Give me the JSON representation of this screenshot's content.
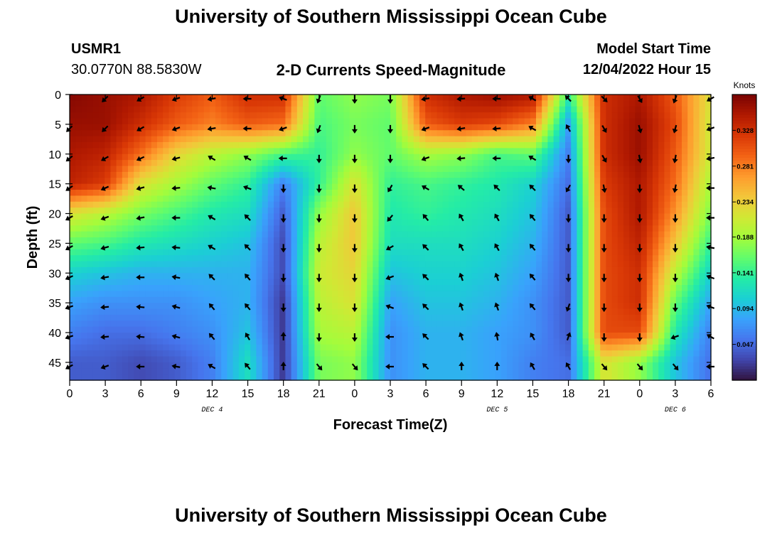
{
  "header": {
    "title": "University of Southern Mississippi Ocean Cube",
    "station_id": "USMR1",
    "station_coords": "30.0770N  88.5830W",
    "plot_title": "2-D Currents Speed-Magnitude",
    "model_start_label": "Model Start Time",
    "model_start_value": "12/04/2022 Hour 15"
  },
  "footer": {
    "title": "University of Southern Mississippi Ocean Cube"
  },
  "colors": {
    "colormap": [
      "#30123b",
      "#4145ab",
      "#4675ed",
      "#39a2fc",
      "#1bcfd4",
      "#24eca6",
      "#61fc6c",
      "#a4fc3b",
      "#d1e834",
      "#f3c63a",
      "#fe9b2d",
      "#f36315",
      "#d93806",
      "#b11901",
      "#7a0402"
    ],
    "arrow": "#000000"
  },
  "chart_data": {
    "type": "heatmap",
    "title": "2-D Currents Speed-Magnitude",
    "xlabel": "Forecast Time(Z)",
    "ylabel": "Depth (ft)",
    "x_hours": [
      0,
      48
    ],
    "ylim": [
      0,
      48
    ],
    "x_ticks": [
      {
        "h": 0,
        "label": "0"
      },
      {
        "h": 3,
        "label": "3"
      },
      {
        "h": 6,
        "label": "6"
      },
      {
        "h": 9,
        "label": "9"
      },
      {
        "h": 12,
        "label": "12"
      },
      {
        "h": 15,
        "label": "15"
      },
      {
        "h": 18,
        "label": "18"
      },
      {
        "h": 21,
        "label": "21"
      },
      {
        "h": 24,
        "label": "0"
      },
      {
        "h": 27,
        "label": "3"
      },
      {
        "h": 30,
        "label": "6"
      },
      {
        "h": 33,
        "label": "9"
      },
      {
        "h": 36,
        "label": "12"
      },
      {
        "h": 39,
        "label": "15"
      },
      {
        "h": 42,
        "label": "18"
      },
      {
        "h": 45,
        "label": "21"
      },
      {
        "h": 48,
        "label": "0"
      },
      {
        "h": 51,
        "label": "3"
      },
      {
        "h": 54,
        "label": "6"
      }
    ],
    "x_max": 54,
    "y_ticks": [
      0,
      5,
      10,
      15,
      20,
      25,
      30,
      35,
      40,
      45
    ],
    "date_labels": [
      {
        "h": 12,
        "label": "DEC 4"
      },
      {
        "h": 36,
        "label": "DEC 5"
      },
      {
        "h": 51,
        "label": "DEC 6"
      }
    ],
    "colorbar": {
      "label": "Knots",
      "min": 0,
      "max": 0.375,
      "ticks": [
        0.047,
        0.094,
        0.141,
        0.188,
        0.234,
        0.281,
        0.328
      ]
    },
    "depths": [
      0,
      5,
      10,
      15,
      20,
      25,
      30,
      35,
      40,
      45
    ],
    "times": [
      0,
      3,
      6,
      9,
      12,
      15,
      18,
      21,
      24,
      27,
      30,
      33,
      36,
      39,
      42,
      45,
      48,
      51,
      54
    ],
    "speed": [
      [
        0.37,
        0.36,
        0.35,
        0.32,
        0.3,
        0.33,
        0.33,
        0.16,
        0.18,
        0.17,
        0.33,
        0.35,
        0.36,
        0.35,
        0.14,
        0.33,
        0.35,
        0.3,
        0.22
      ],
      [
        0.36,
        0.36,
        0.33,
        0.3,
        0.28,
        0.3,
        0.29,
        0.15,
        0.17,
        0.16,
        0.3,
        0.32,
        0.31,
        0.28,
        0.08,
        0.33,
        0.36,
        0.31,
        0.21
      ],
      [
        0.35,
        0.34,
        0.29,
        0.23,
        0.2,
        0.18,
        0.15,
        0.14,
        0.18,
        0.16,
        0.19,
        0.18,
        0.15,
        0.16,
        0.06,
        0.33,
        0.36,
        0.3,
        0.21
      ],
      [
        0.34,
        0.32,
        0.22,
        0.19,
        0.16,
        0.14,
        0.06,
        0.14,
        0.22,
        0.14,
        0.15,
        0.14,
        0.13,
        0.11,
        0.05,
        0.32,
        0.35,
        0.29,
        0.19
      ],
      [
        0.22,
        0.2,
        0.17,
        0.15,
        0.13,
        0.12,
        0.04,
        0.18,
        0.24,
        0.13,
        0.14,
        0.13,
        0.12,
        0.1,
        0.04,
        0.31,
        0.35,
        0.27,
        0.17
      ],
      [
        0.16,
        0.15,
        0.13,
        0.12,
        0.11,
        0.1,
        0.03,
        0.2,
        0.24,
        0.12,
        0.12,
        0.12,
        0.11,
        0.09,
        0.04,
        0.31,
        0.34,
        0.24,
        0.14
      ],
      [
        0.11,
        0.1,
        0.09,
        0.09,
        0.09,
        0.09,
        0.03,
        0.21,
        0.23,
        0.1,
        0.11,
        0.11,
        0.1,
        0.08,
        0.04,
        0.31,
        0.33,
        0.2,
        0.11
      ],
      [
        0.08,
        0.07,
        0.07,
        0.07,
        0.08,
        0.09,
        0.02,
        0.2,
        0.22,
        0.08,
        0.1,
        0.1,
        0.09,
        0.07,
        0.04,
        0.31,
        0.33,
        0.16,
        0.08
      ],
      [
        0.06,
        0.05,
        0.05,
        0.06,
        0.07,
        0.1,
        0.02,
        0.19,
        0.2,
        0.07,
        0.09,
        0.09,
        0.08,
        0.07,
        0.04,
        0.31,
        0.31,
        0.13,
        0.06
      ],
      [
        0.04,
        0.04,
        0.03,
        0.04,
        0.06,
        0.12,
        0.02,
        0.17,
        0.18,
        0.07,
        0.09,
        0.09,
        0.08,
        0.06,
        0.05,
        0.22,
        0.18,
        0.1,
        0.05
      ]
    ],
    "arrow_dir_deg": [
      [
        null,
        225,
        240,
        250,
        260,
        270,
        290,
        200,
        180,
        180,
        260,
        265,
        270,
        300,
        315,
        135,
        150,
        200,
        240
      ],
      [
        225,
        225,
        240,
        250,
        260,
        270,
        250,
        200,
        180,
        180,
        250,
        260,
        265,
        300,
        330,
        150,
        165,
        195,
        250
      ],
      [
        230,
        240,
        245,
        255,
        300,
        300,
        270,
        180,
        180,
        180,
        250,
        265,
        270,
        300,
        180,
        150,
        170,
        190,
        260
      ],
      [
        235,
        245,
        255,
        265,
        280,
        290,
        180,
        180,
        180,
        210,
        300,
        310,
        315,
        315,
        210,
        170,
        180,
        190,
        270
      ],
      [
        240,
        250,
        260,
        270,
        300,
        315,
        180,
        180,
        180,
        220,
        320,
        330,
        330,
        320,
        180,
        180,
        180,
        180,
        270
      ],
      [
        240,
        255,
        265,
        275,
        300,
        315,
        180,
        180,
        180,
        240,
        315,
        330,
        330,
        320,
        180,
        180,
        180,
        180,
        280
      ],
      [
        245,
        260,
        270,
        280,
        315,
        320,
        180,
        180,
        180,
        250,
        315,
        340,
        340,
        320,
        180,
        180,
        180,
        180,
        290
      ],
      [
        250,
        265,
        275,
        285,
        320,
        320,
        180,
        180,
        180,
        290,
        315,
        340,
        340,
        320,
        200,
        180,
        180,
        180,
        290
      ],
      [
        250,
        265,
        275,
        285,
        320,
        330,
        0,
        180,
        180,
        270,
        315,
        340,
        350,
        330,
        20,
        180,
        180,
        250,
        300
      ],
      [
        240,
        250,
        270,
        280,
        300,
        320,
        0,
        140,
        140,
        270,
        315,
        0,
        0,
        330,
        330,
        140,
        140,
        140,
        270
      ]
    ]
  }
}
